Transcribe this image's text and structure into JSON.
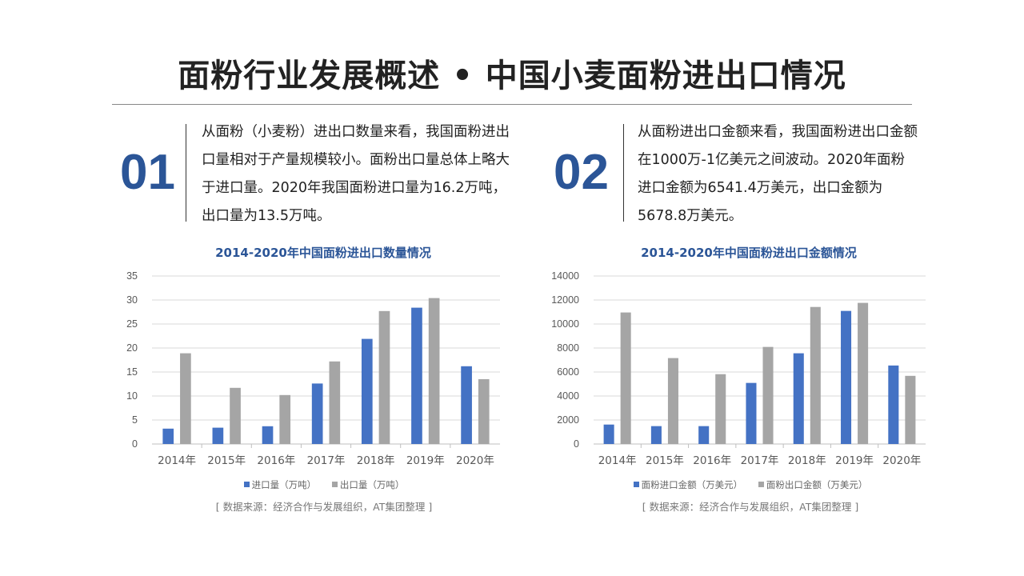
{
  "title": "面粉行业发展概述 • 中国小麦面粉进出口情况",
  "blocks": [
    {
      "number": "01",
      "text": "从面粉（小麦粉）进出口数量来看，我国面粉进出口量相对于产量规模较小。面粉出口量总体上略大于进口量。2020年我国面粉进口量为16.2万吨，出口量为13.5万吨。"
    },
    {
      "number": "02",
      "text": "从面粉进出口金额来看，我国面粉进出口金额在1000万-1亿美元之间波动。2020年面粉进口金额为6541.4万美元，出口金额为5678.8万美元。"
    }
  ],
  "colors": {
    "accent": "#2b5597",
    "series_blue": "#4472c4",
    "series_gray": "#a5a5a5"
  },
  "chart_data": [
    {
      "type": "bar",
      "title": "2014-2020年中国面粉进出口数量情况",
      "categories": [
        "2014年",
        "2015年",
        "2016年",
        "2017年",
        "2018年",
        "2019年",
        "2020年"
      ],
      "series": [
        {
          "name": "进口量（万吨）",
          "values": [
            3.2,
            3.4,
            3.7,
            12.6,
            21.9,
            28.4,
            16.2
          ]
        },
        {
          "name": "出口量（万吨）",
          "values": [
            18.9,
            11.7,
            10.2,
            17.2,
            27.7,
            30.4,
            13.5
          ]
        }
      ],
      "yticks": [
        0,
        5,
        10,
        15,
        20,
        25,
        30,
        35
      ],
      "ylim": [
        0,
        35
      ],
      "grid": true,
      "legend": "bottom",
      "source": "[ 数据来源：经济合作与发展组织，AT集团整理  ]"
    },
    {
      "type": "bar",
      "title": "2014-2020年中国面粉进出口金额情况",
      "categories": [
        "2014年",
        "2015年",
        "2016年",
        "2017年",
        "2018年",
        "2019年",
        "2020年"
      ],
      "series": [
        {
          "name": "面粉进口金额（万美元）",
          "values": [
            1620,
            1490,
            1490,
            5090,
            7560,
            11090,
            6541.4
          ]
        },
        {
          "name": "面粉出口金额（万美元）",
          "values": [
            10960,
            7160,
            5820,
            8090,
            11420,
            11760,
            5678.8
          ]
        }
      ],
      "yticks": [
        0,
        2000,
        4000,
        6000,
        8000,
        10000,
        12000,
        14000
      ],
      "ylim": [
        0,
        14000
      ],
      "grid": true,
      "legend": "bottom",
      "source": "[ 数据来源：经济合作与发展组织，AT集团整理  ]"
    }
  ]
}
